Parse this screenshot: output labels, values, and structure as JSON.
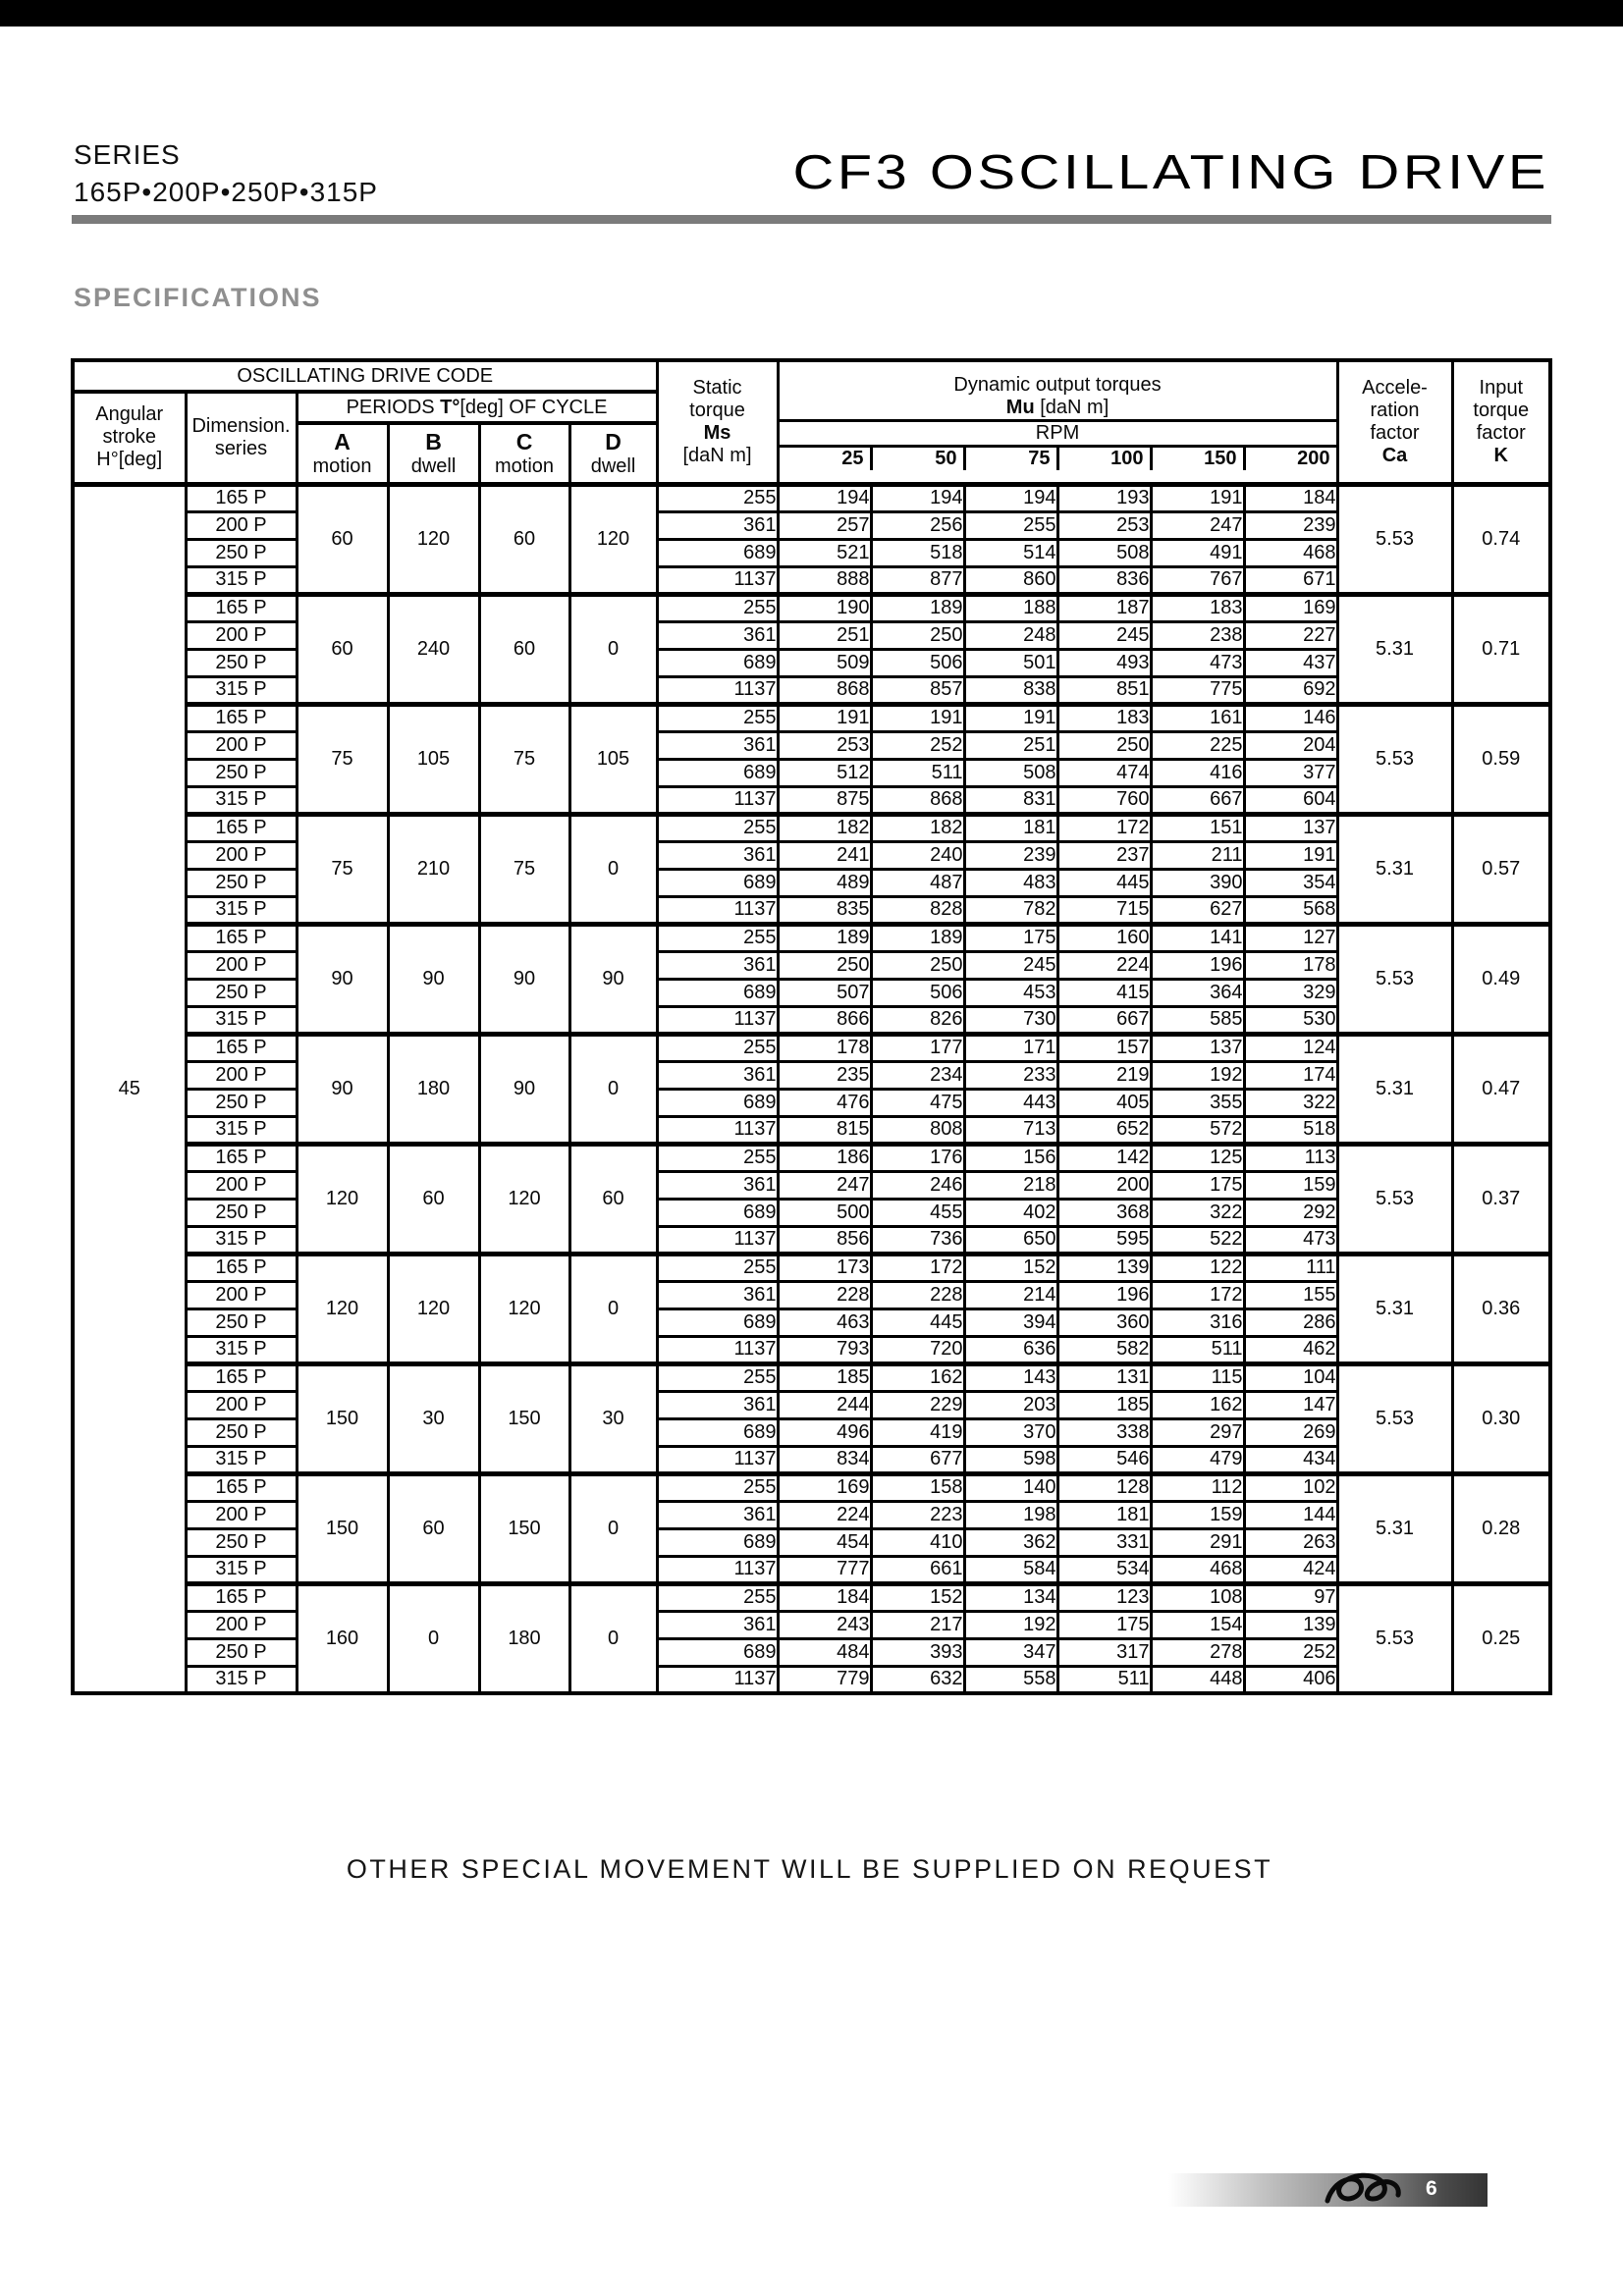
{
  "page": {
    "series_label": "SERIES",
    "series_models": "165P•200P•250P•315P",
    "title": "CF3 OSCILLATING DRIVE",
    "section_title": "SPECIFICATIONS",
    "footer_note": "OTHER SPECIAL MOVEMENT WILL BE SUPPLIED ON REQUEST",
    "page_number": "6"
  },
  "table": {
    "header": {
      "drive_code": "OSCILLATING DRIVE CODE",
      "angular_stroke_lines": [
        "Angular",
        "stroke",
        "H°[deg]"
      ],
      "dimension_lines": [
        "Dimension.",
        "series"
      ],
      "periods_prefix": "PERIODS ",
      "periods_bold": "T°",
      "periods_suffix": "[deg] OF CYCLE",
      "period_cols": [
        {
          "letter": "A",
          "sub": "motion"
        },
        {
          "letter": "B",
          "sub": "dwell"
        },
        {
          "letter": "C",
          "sub": "motion"
        },
        {
          "letter": "D",
          "sub": "dwell"
        }
      ],
      "static_lines": [
        "Static",
        "torque"
      ],
      "static_symbol": "Ms",
      "static_unit": "[daN m]",
      "dynamic_line1": "Dynamic output torques",
      "dynamic_bold": "Mu",
      "dynamic_unit": " [daN m]",
      "rpm_label": "RPM",
      "rpm_cols": [
        "25",
        "50",
        "75",
        "100",
        "150",
        "200"
      ],
      "accel_lines": [
        "Accele-",
        "ration",
        "factor"
      ],
      "accel_symbol": "Ca",
      "input_lines": [
        "Input",
        "torque",
        "factor"
      ],
      "input_symbol": "K"
    },
    "angular_stroke_value": "45",
    "groups": [
      {
        "periods": [
          "60",
          "120",
          "60",
          "120"
        ],
        "ca": "5.53",
        "k": "0.74",
        "rows": [
          {
            "series": "165 P",
            "ms": "255",
            "values": [
              "194",
              "194",
              "194",
              "193",
              "191",
              "184"
            ]
          },
          {
            "series": "200 P",
            "ms": "361",
            "values": [
              "257",
              "256",
              "255",
              "253",
              "247",
              "239"
            ]
          },
          {
            "series": "250 P",
            "ms": "689",
            "values": [
              "521",
              "518",
              "514",
              "508",
              "491",
              "468"
            ]
          },
          {
            "series": "315 P",
            "ms": "1137",
            "values": [
              "888",
              "877",
              "860",
              "836",
              "767",
              "671"
            ]
          }
        ]
      },
      {
        "periods": [
          "60",
          "240",
          "60",
          "0"
        ],
        "ca": "5.31",
        "k": "0.71",
        "rows": [
          {
            "series": "165 P",
            "ms": "255",
            "values": [
              "190",
              "189",
              "188",
              "187",
              "183",
              "169"
            ]
          },
          {
            "series": "200 P",
            "ms": "361",
            "values": [
              "251",
              "250",
              "248",
              "245",
              "238",
              "227"
            ]
          },
          {
            "series": "250 P",
            "ms": "689",
            "values": [
              "509",
              "506",
              "501",
              "493",
              "473",
              "437"
            ]
          },
          {
            "series": "315 P",
            "ms": "1137",
            "values": [
              "868",
              "857",
              "838",
              "851",
              "775",
              "692"
            ]
          }
        ]
      },
      {
        "periods": [
          "75",
          "105",
          "75",
          "105"
        ],
        "ca": "5.53",
        "k": "0.59",
        "rows": [
          {
            "series": "165 P",
            "ms": "255",
            "values": [
              "191",
              "191",
              "191",
              "183",
              "161",
              "146"
            ]
          },
          {
            "series": "200 P",
            "ms": "361",
            "values": [
              "253",
              "252",
              "251",
              "250",
              "225",
              "204"
            ]
          },
          {
            "series": "250 P",
            "ms": "689",
            "values": [
              "512",
              "511",
              "508",
              "474",
              "416",
              "377"
            ]
          },
          {
            "series": "315 P",
            "ms": "1137",
            "values": [
              "875",
              "868",
              "831",
              "760",
              "667",
              "604"
            ]
          }
        ]
      },
      {
        "periods": [
          "75",
          "210",
          "75",
          "0"
        ],
        "ca": "5.31",
        "k": "0.57",
        "rows": [
          {
            "series": "165 P",
            "ms": "255",
            "values": [
              "182",
              "182",
              "181",
              "172",
              "151",
              "137"
            ]
          },
          {
            "series": "200 P",
            "ms": "361",
            "values": [
              "241",
              "240",
              "239",
              "237",
              "211",
              "191"
            ]
          },
          {
            "series": "250 P",
            "ms": "689",
            "values": [
              "489",
              "487",
              "483",
              "445",
              "390",
              "354"
            ]
          },
          {
            "series": "315 P",
            "ms": "1137",
            "values": [
              "835",
              "828",
              "782",
              "715",
              "627",
              "568"
            ]
          }
        ]
      },
      {
        "periods": [
          "90",
          "90",
          "90",
          "90"
        ],
        "ca": "5.53",
        "k": "0.49",
        "rows": [
          {
            "series": "165 P",
            "ms": "255",
            "values": [
              "189",
              "189",
              "175",
              "160",
              "141",
              "127"
            ]
          },
          {
            "series": "200 P",
            "ms": "361",
            "values": [
              "250",
              "250",
              "245",
              "224",
              "196",
              "178"
            ]
          },
          {
            "series": "250 P",
            "ms": "689",
            "values": [
              "507",
              "506",
              "453",
              "415",
              "364",
              "329"
            ]
          },
          {
            "series": "315 P",
            "ms": "1137",
            "values": [
              "866",
              "826",
              "730",
              "667",
              "585",
              "530"
            ]
          }
        ]
      },
      {
        "periods": [
          "90",
          "180",
          "90",
          "0"
        ],
        "ca": "5.31",
        "k": "0.47",
        "rows": [
          {
            "series": "165 P",
            "ms": "255",
            "values": [
              "178",
              "177",
              "171",
              "157",
              "137",
              "124"
            ]
          },
          {
            "series": "200 P",
            "ms": "361",
            "values": [
              "235",
              "234",
              "233",
              "219",
              "192",
              "174"
            ]
          },
          {
            "series": "250 P",
            "ms": "689",
            "values": [
              "476",
              "475",
              "443",
              "405",
              "355",
              "322"
            ]
          },
          {
            "series": "315 P",
            "ms": "1137",
            "values": [
              "815",
              "808",
              "713",
              "652",
              "572",
              "518"
            ]
          }
        ]
      },
      {
        "periods": [
          "120",
          "60",
          "120",
          "60"
        ],
        "ca": "5.53",
        "k": "0.37",
        "rows": [
          {
            "series": "165 P",
            "ms": "255",
            "values": [
              "186",
              "176",
              "156",
              "142",
              "125",
              "113"
            ]
          },
          {
            "series": "200 P",
            "ms": "361",
            "values": [
              "247",
              "246",
              "218",
              "200",
              "175",
              "159"
            ]
          },
          {
            "series": "250 P",
            "ms": "689",
            "values": [
              "500",
              "455",
              "402",
              "368",
              "322",
              "292"
            ]
          },
          {
            "series": "315 P",
            "ms": "1137",
            "values": [
              "856",
              "736",
              "650",
              "595",
              "522",
              "473"
            ]
          }
        ]
      },
      {
        "periods": [
          "120",
          "120",
          "120",
          "0"
        ],
        "ca": "5.31",
        "k": "0.36",
        "rows": [
          {
            "series": "165 P",
            "ms": "255",
            "values": [
              "173",
              "172",
              "152",
              "139",
              "122",
              "111"
            ]
          },
          {
            "series": "200 P",
            "ms": "361",
            "values": [
              "228",
              "228",
              "214",
              "196",
              "172",
              "155"
            ]
          },
          {
            "series": "250 P",
            "ms": "689",
            "values": [
              "463",
              "445",
              "394",
              "360",
              "316",
              "286"
            ]
          },
          {
            "series": "315 P",
            "ms": "1137",
            "values": [
              "793",
              "720",
              "636",
              "582",
              "511",
              "462"
            ]
          }
        ]
      },
      {
        "periods": [
          "150",
          "30",
          "150",
          "30"
        ],
        "ca": "5.53",
        "k": "0.30",
        "rows": [
          {
            "series": "165 P",
            "ms": "255",
            "values": [
              "185",
              "162",
              "143",
              "131",
              "115",
              "104"
            ]
          },
          {
            "series": "200 P",
            "ms": "361",
            "values": [
              "244",
              "229",
              "203",
              "185",
              "162",
              "147"
            ]
          },
          {
            "series": "250 P",
            "ms": "689",
            "values": [
              "496",
              "419",
              "370",
              "338",
              "297",
              "269"
            ]
          },
          {
            "series": "315 P",
            "ms": "1137",
            "values": [
              "834",
              "677",
              "598",
              "546",
              "479",
              "434"
            ]
          }
        ]
      },
      {
        "periods": [
          "150",
          "60",
          "150",
          "0"
        ],
        "ca": "5.31",
        "k": "0.28",
        "rows": [
          {
            "series": "165 P",
            "ms": "255",
            "values": [
              "169",
              "158",
              "140",
              "128",
              "112",
              "102"
            ]
          },
          {
            "series": "200 P",
            "ms": "361",
            "values": [
              "224",
              "223",
              "198",
              "181",
              "159",
              "144"
            ]
          },
          {
            "series": "250 P",
            "ms": "689",
            "values": [
              "454",
              "410",
              "362",
              "331",
              "291",
              "263"
            ]
          },
          {
            "series": "315 P",
            "ms": "1137",
            "values": [
              "777",
              "661",
              "584",
              "534",
              "468",
              "424"
            ]
          }
        ]
      },
      {
        "periods": [
          "160",
          "0",
          "180",
          "0"
        ],
        "ca": "5.53",
        "k": "0.25",
        "rows": [
          {
            "series": "165 P",
            "ms": "255",
            "values": [
              "184",
              "152",
              "134",
              "123",
              "108",
              "97"
            ]
          },
          {
            "series": "200 P",
            "ms": "361",
            "values": [
              "243",
              "217",
              "192",
              "175",
              "154",
              "139"
            ]
          },
          {
            "series": "250 P",
            "ms": "689",
            "values": [
              "484",
              "393",
              "347",
              "317",
              "278",
              "252"
            ]
          },
          {
            "series": "315 P",
            "ms": "1137",
            "values": [
              "779",
              "632",
              "558",
              "511",
              "448",
              "406"
            ]
          }
        ]
      }
    ]
  }
}
